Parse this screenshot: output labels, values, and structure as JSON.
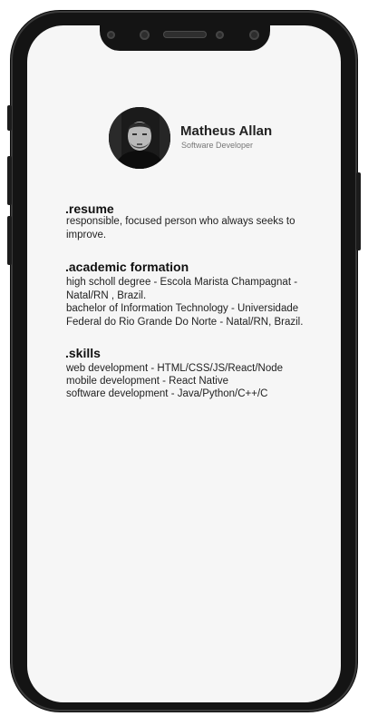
{
  "profile": {
    "name": "Matheus Allan",
    "role": "Software Developer"
  },
  "resume": {
    "title": ".resume",
    "text": "responsible, focused person who always seeks to improve."
  },
  "academic": {
    "title": ".academic formation",
    "items": [
      "high scholl degree - Escola Marista Champagnat - Natal/RN , Brazil.",
      "bachelor of Information Technology - Universidade Federal do Rio Grande Do Norte - Natal/RN, Brazil."
    ]
  },
  "skills": {
    "title": ".skills",
    "items": [
      "web development - HTML/CSS/JS/React/Node",
      "mobile development - React Native",
      "software development - Java/Python/C++/C"
    ]
  },
  "colors": {
    "frame": "#141414",
    "screen": "#f6f6f6",
    "text": "#222222"
  },
  "icons": {
    "avatar": "user-photo",
    "camera": "front-camera-icon",
    "speaker": "earpiece-speaker-icon"
  }
}
